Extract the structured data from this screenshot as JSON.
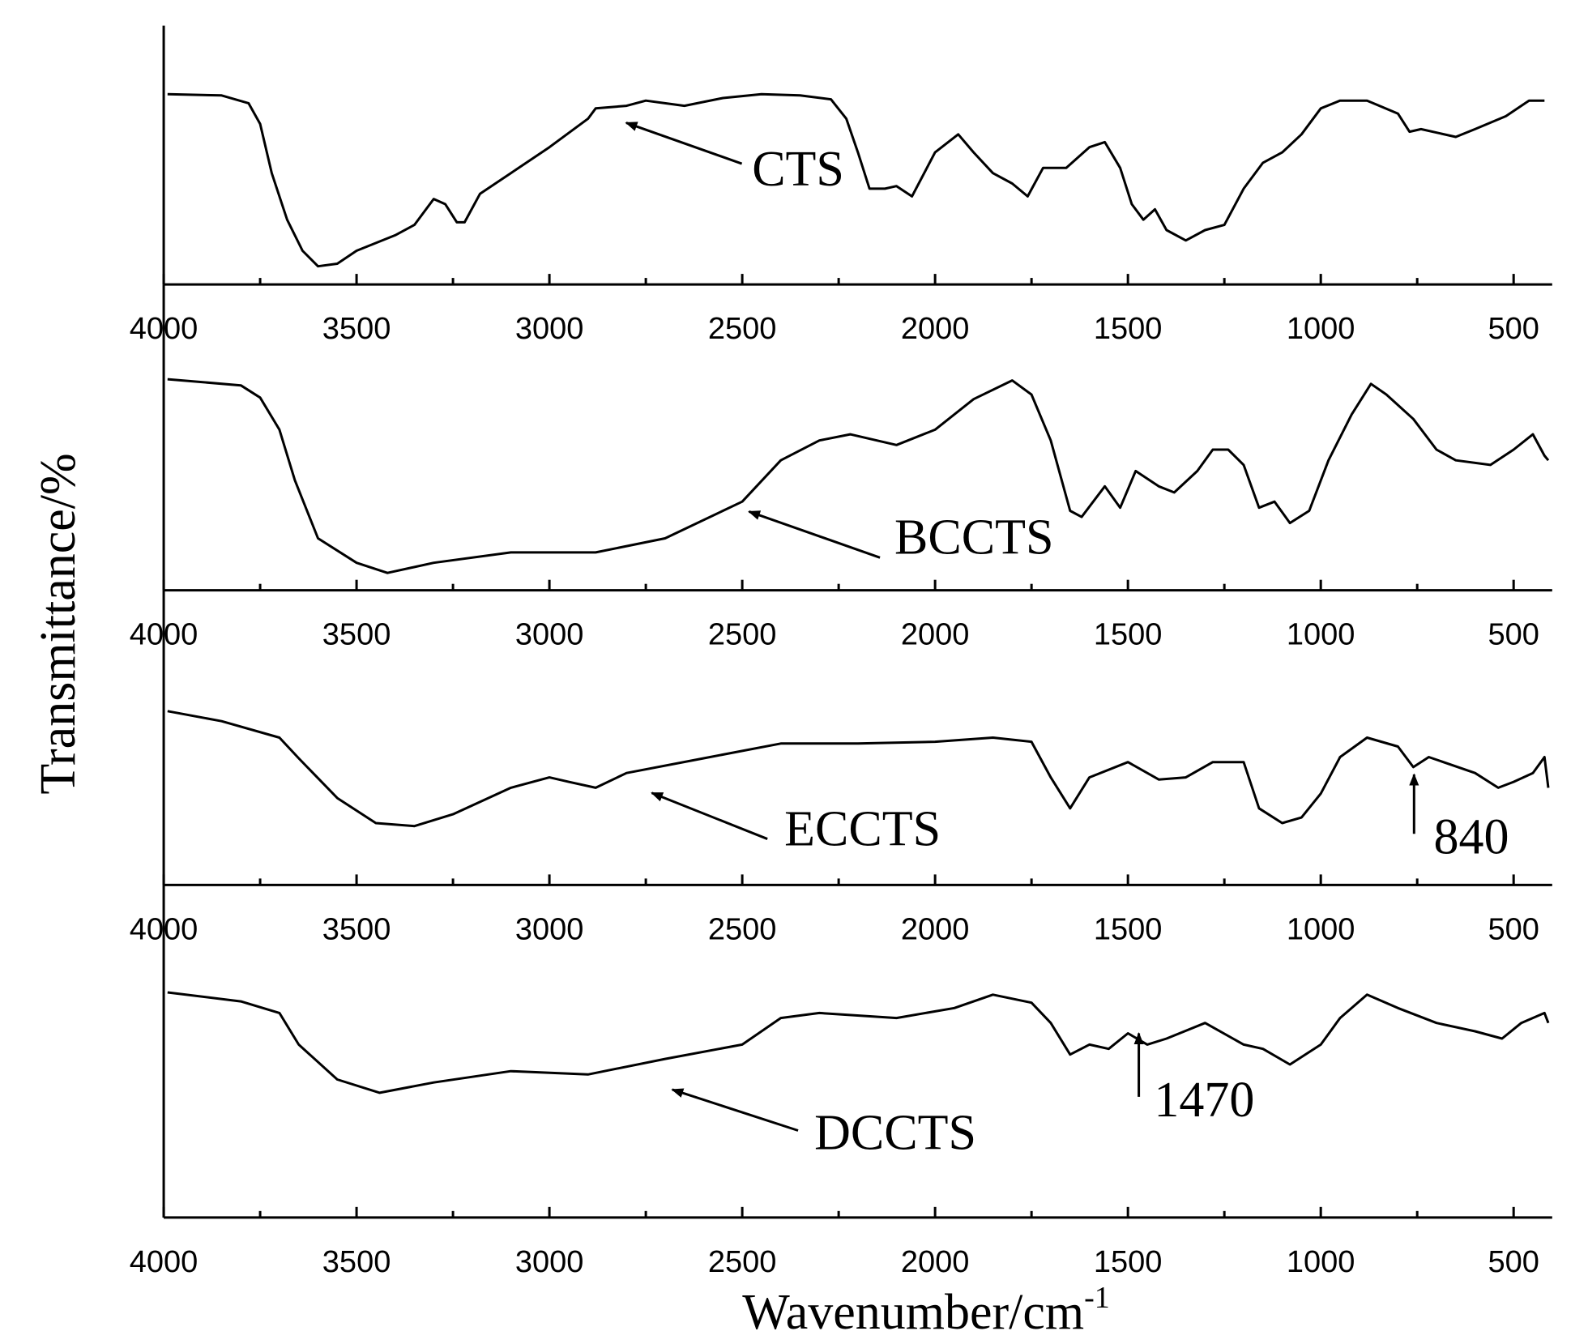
{
  "figure": {
    "y_label": "Transmittance/%",
    "x_label": "Wavenumber/cm",
    "x_label_superscript": "-1"
  },
  "chart_data": [
    {
      "type": "line",
      "xlim": [
        4000,
        400
      ],
      "ylim": [
        0,
        100
      ],
      "xticks": [
        4000,
        3500,
        3000,
        2500,
        2000,
        1500,
        1000,
        500
      ],
      "minor_xticks": [
        3750,
        3250,
        2750,
        2250,
        1750,
        1250,
        750
      ],
      "x": [
        3990,
        3850,
        3780,
        3750,
        3720,
        3680,
        3640,
        3600,
        3550,
        3500,
        3400,
        3350,
        3300,
        3270,
        3240,
        3220,
        3180,
        3100,
        3000,
        2900,
        2880,
        2800,
        2750,
        2650,
        2550,
        2450,
        2350,
        2270,
        2230,
        2200,
        2170,
        2130,
        2100,
        2060,
        2000,
        1940,
        1900,
        1850,
        1800,
        1760,
        1720,
        1660,
        1600,
        1560,
        1520,
        1490,
        1460,
        1430,
        1400,
        1350,
        1300,
        1250,
        1200,
        1150,
        1100,
        1050,
        1000,
        950,
        880,
        800,
        770,
        740,
        650,
        600,
        520,
        460,
        420
      ],
      "series": [
        {
          "name": "CTS",
          "color": "#000000",
          "values": [
            73.5,
            73,
            70,
            62,
            43,
            25,
            13,
            7,
            8,
            13,
            19,
            23,
            33,
            31,
            24,
            24,
            35,
            43,
            53,
            64,
            68,
            69,
            71,
            69,
            72,
            73.5,
            73,
            71.5,
            64,
            51,
            37,
            37,
            38,
            34,
            51,
            58,
            51,
            43,
            39,
            34,
            45,
            45,
            53,
            55,
            45,
            31,
            25,
            29,
            21,
            17,
            21,
            23,
            37,
            47,
            51,
            58,
            68,
            71,
            71,
            66,
            59,
            60,
            57,
            60,
            65,
            71,
            71
          ]
        }
      ]
    },
    {
      "type": "line",
      "xlim": [
        4000,
        400
      ],
      "ylim": [
        0,
        100
      ],
      "xticks": [
        4000,
        3500,
        3000,
        2500,
        2000,
        1500,
        1000,
        500
      ],
      "minor_xticks": [
        3750,
        3250,
        2750,
        2250,
        1750,
        1250,
        750
      ],
      "x": [
        3990,
        3800,
        3750,
        3700,
        3660,
        3600,
        3500,
        3420,
        3300,
        3100,
        2950,
        2880,
        2700,
        2500,
        2400,
        2300,
        2220,
        2100,
        2000,
        1900,
        1800,
        1750,
        1700,
        1650,
        1620,
        1560,
        1520,
        1480,
        1420,
        1380,
        1320,
        1280,
        1240,
        1200,
        1160,
        1120,
        1080,
        1030,
        980,
        920,
        870,
        830,
        760,
        700,
        650,
        560,
        500,
        450,
        420,
        410
      ],
      "series": [
        {
          "name": "BCCTS",
          "color": "#000000",
          "values": [
            69,
            67,
            63,
            52.5,
            36,
            17,
            9,
            5.7,
            9,
            12.4,
            12.4,
            12.4,
            17,
            29,
            42.5,
            49,
            51,
            47.5,
            52.5,
            62.5,
            68.6,
            64,
            49,
            26,
            24,
            34,
            27,
            39,
            34,
            32,
            39,
            46,
            46,
            41,
            27,
            29,
            22,
            26,
            42.5,
            57.5,
            67.5,
            64,
            56,
            46,
            42.5,
            41,
            46,
            51,
            44,
            42.5
          ]
        }
      ]
    },
    {
      "type": "line",
      "xlim": [
        4000,
        400
      ],
      "ylim": [
        0,
        100
      ],
      "xticks": [
        4000,
        3500,
        3000,
        2500,
        2000,
        1500,
        1000,
        500
      ],
      "minor_xticks": [
        3750,
        3250,
        2750,
        2250,
        1750,
        1250,
        750
      ],
      "x": [
        3990,
        3850,
        3700,
        3650,
        3550,
        3450,
        3350,
        3250,
        3100,
        3000,
        2950,
        2880,
        2800,
        2600,
        2400,
        2200,
        2000,
        1850,
        1750,
        1700,
        1650,
        1600,
        1500,
        1420,
        1350,
        1280,
        1200,
        1160,
        1100,
        1050,
        1000,
        950,
        880,
        800,
        760,
        720,
        600,
        540,
        500,
        450,
        420,
        410
      ],
      "series": [
        {
          "name": "ECCTS",
          "color": "#000000",
          "values": [
            59,
            55.6,
            50,
            43,
            29.5,
            21,
            20,
            24,
            33,
            36.5,
            35,
            33,
            38,
            43,
            48,
            48,
            48.6,
            50,
            48.6,
            36.5,
            26,
            36.5,
            41.7,
            35.8,
            36.5,
            41.7,
            41.7,
            26,
            21,
            22.9,
            31,
            43.4,
            50,
            47,
            40,
            43.4,
            38,
            33,
            35,
            38,
            43.4,
            33
          ]
        }
      ],
      "annotations": [
        {
          "text": "840"
        }
      ]
    },
    {
      "type": "line",
      "xlim": [
        4000,
        400
      ],
      "ylim": [
        0,
        100
      ],
      "xticks": [
        4000,
        3500,
        3000,
        2500,
        2000,
        1500,
        1000,
        500
      ],
      "minor_xticks": [
        3750,
        3250,
        2750,
        2250,
        1750,
        1250,
        750
      ],
      "x": [
        3990,
        3800,
        3700,
        3650,
        3550,
        3440,
        3300,
        3100,
        2900,
        2700,
        2500,
        2400,
        2300,
        2100,
        1950,
        1850,
        1750,
        1700,
        1650,
        1600,
        1550,
        1500,
        1450,
        1400,
        1300,
        1200,
        1150,
        1080,
        1000,
        950,
        880,
        800,
        700,
        600,
        530,
        480,
        420,
        410
      ],
      "series": [
        {
          "name": "DCCTS",
          "color": "#000000",
          "values": [
            67.7,
            65,
            61.5,
            52,
            41.5,
            37.5,
            40.6,
            44,
            43,
            47.7,
            52,
            60,
            61.5,
            60,
            63,
            67,
            64.6,
            58.5,
            49,
            52,
            50.7,
            55.4,
            52,
            53.8,
            58.5,
            52,
            50.7,
            46,
            52,
            60,
            67,
            63,
            58.5,
            56,
            53.8,
            58.5,
            61.5,
            58.5
          ]
        }
      ],
      "annotations": [
        {
          "text": "1470"
        }
      ]
    }
  ]
}
